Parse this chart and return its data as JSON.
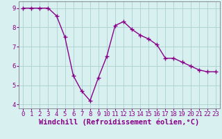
{
  "x": [
    0,
    1,
    2,
    3,
    4,
    5,
    6,
    7,
    8,
    9,
    10,
    11,
    12,
    13,
    14,
    15,
    16,
    17,
    18,
    19,
    20,
    21,
    22,
    23
  ],
  "y": [
    9.0,
    9.0,
    9.0,
    9.0,
    8.6,
    7.5,
    5.5,
    4.7,
    4.2,
    5.4,
    6.5,
    8.1,
    8.3,
    7.9,
    7.6,
    7.4,
    7.1,
    6.4,
    6.4,
    6.2,
    6.0,
    5.8,
    5.7,
    5.7
  ],
  "line_color": "#880088",
  "marker": "+",
  "markersize": 4,
  "linewidth": 1.0,
  "xlabel": "Windchill (Refroidissement éolien,°C)",
  "background_color": "#d8f0f0",
  "grid_color": "#b0d4d4",
  "ylim": [
    3.8,
    9.35
  ],
  "xlim": [
    -0.5,
    23.5
  ],
  "yticks": [
    4,
    5,
    6,
    7,
    8,
    9
  ],
  "xticks": [
    0,
    1,
    2,
    3,
    4,
    5,
    6,
    7,
    8,
    9,
    10,
    11,
    12,
    13,
    14,
    15,
    16,
    17,
    18,
    19,
    20,
    21,
    22,
    23
  ],
  "tick_fontsize": 6.5,
  "xlabel_fontsize": 7.5,
  "spine_color": "#888899"
}
